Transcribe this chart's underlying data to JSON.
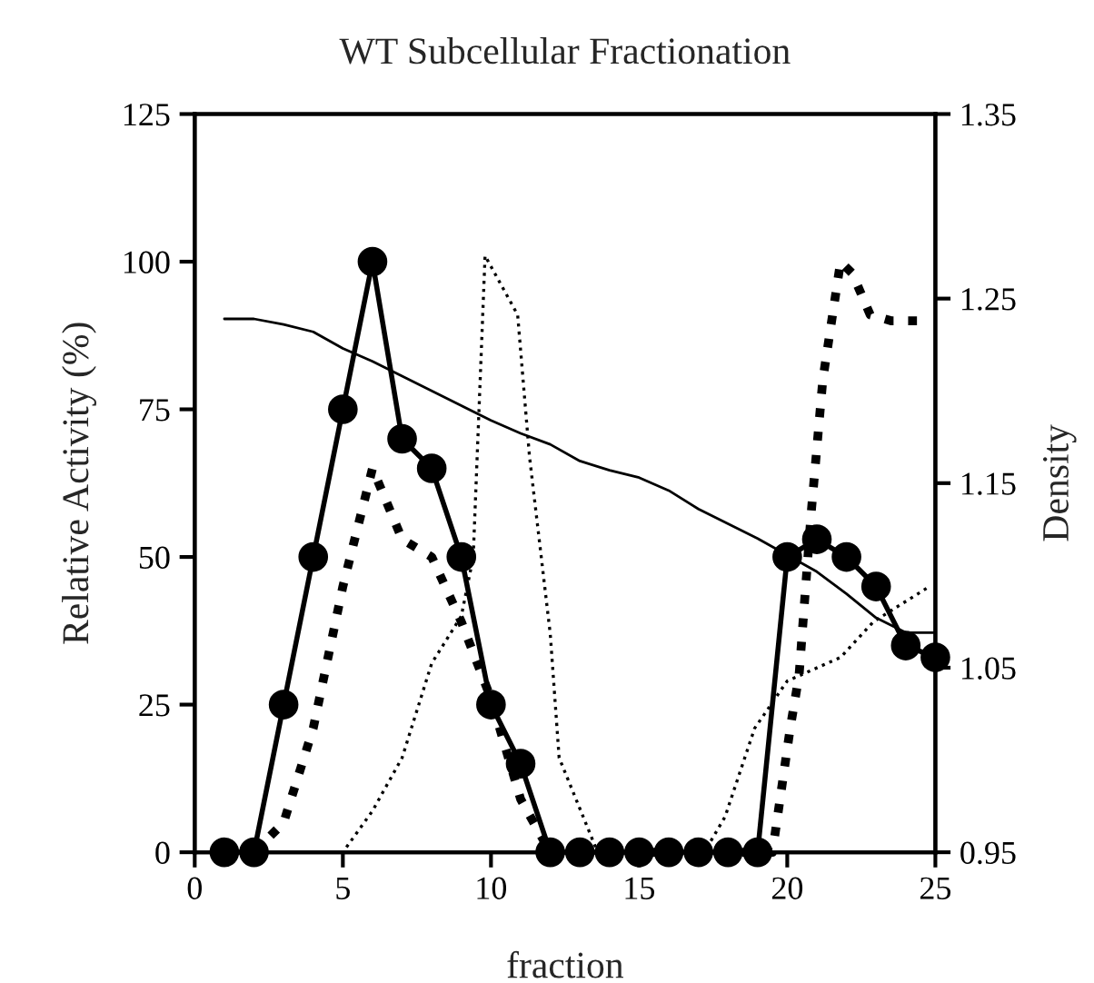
{
  "chart_data": {
    "type": "line",
    "title": "WT Subcellular Fractionation",
    "xlabel": "fraction",
    "ylabel": "Relative Activity (%)",
    "y2label": "Density",
    "xlim": [
      0,
      25
    ],
    "xticks": [
      0,
      5,
      10,
      15,
      20,
      25
    ],
    "ylim": [
      0,
      125
    ],
    "yticks": [
      0,
      25,
      50,
      75,
      100,
      125
    ],
    "y2lim": [
      0.95,
      1.35
    ],
    "y2ticks": [
      {
        "value": 0.95,
        "label": "0.95"
      },
      {
        "value": 1.05,
        "label": "1.05"
      },
      {
        "value": 1.15,
        "label": "1.15"
      },
      {
        "value": 1.25,
        "label": "1.25"
      },
      {
        "value": 1.35,
        "label": "1.35"
      }
    ],
    "grid": false,
    "legend": false,
    "series": [
      {
        "color": "#000000",
        "marker": "circle",
        "line_style": "solid",
        "x": [
          1,
          2,
          3,
          4,
          5,
          6,
          7,
          8,
          9,
          10,
          11,
          12,
          13,
          14,
          15,
          16,
          17,
          18,
          19,
          20,
          21,
          22,
          23,
          24,
          25
        ],
        "values": [
          0,
          0,
          25,
          50,
          75,
          100,
          70,
          65,
          50,
          25,
          15,
          0,
          0,
          0,
          0,
          0,
          0,
          0,
          0,
          50,
          53,
          50,
          45,
          35,
          33
        ]
      },
      {
        "color": "#000000",
        "marker": "none",
        "line_style": "dotted",
        "x": [
          2,
          3,
          4,
          5,
          6,
          7,
          8,
          9,
          10,
          11,
          12,
          19.5,
          20.1,
          20.4,
          20.8,
          21.2,
          21.8,
          22.2,
          22.8,
          23.5,
          24.4
        ],
        "values": [
          0,
          5,
          21,
          45,
          65,
          53,
          50,
          39,
          26,
          9,
          0,
          0,
          21,
          30,
          57,
          80,
          100,
          98,
          91,
          90,
          90
        ]
      },
      {
        "color": "#000000",
        "marker": "none",
        "line_style": "dotted",
        "x": [
          2.5,
          5,
          6,
          7,
          8,
          9,
          9.4,
          9.8,
          10.9,
          11.3,
          12,
          12.3,
          13.6,
          17.2,
          17.9,
          18.9,
          20,
          21.8,
          22.9,
          24.8
        ],
        "values": [
          0,
          0,
          7,
          16,
          32,
          40,
          50,
          101,
          91,
          67,
          37,
          16,
          0,
          0,
          6,
          21,
          29,
          33,
          39,
          45
        ]
      },
      {
        "color": "#000000",
        "marker": "none",
        "line_style": "solid",
        "axis": "y2",
        "x": [
          1,
          2,
          3,
          4,
          5,
          6,
          7,
          8,
          9,
          10,
          11,
          12,
          13,
          14,
          15,
          16,
          17,
          18,
          19,
          20,
          21,
          22,
          23,
          24,
          25
        ],
        "values": [
          1.239,
          1.239,
          1.236,
          1.232,
          1.223,
          1.216,
          1.208,
          1.2,
          1.192,
          1.184,
          1.177,
          1.171,
          1.162,
          1.157,
          1.153,
          1.146,
          1.136,
          1.128,
          1.12,
          1.111,
          1.102,
          1.09,
          1.077,
          1.069,
          1.069
        ]
      }
    ]
  }
}
